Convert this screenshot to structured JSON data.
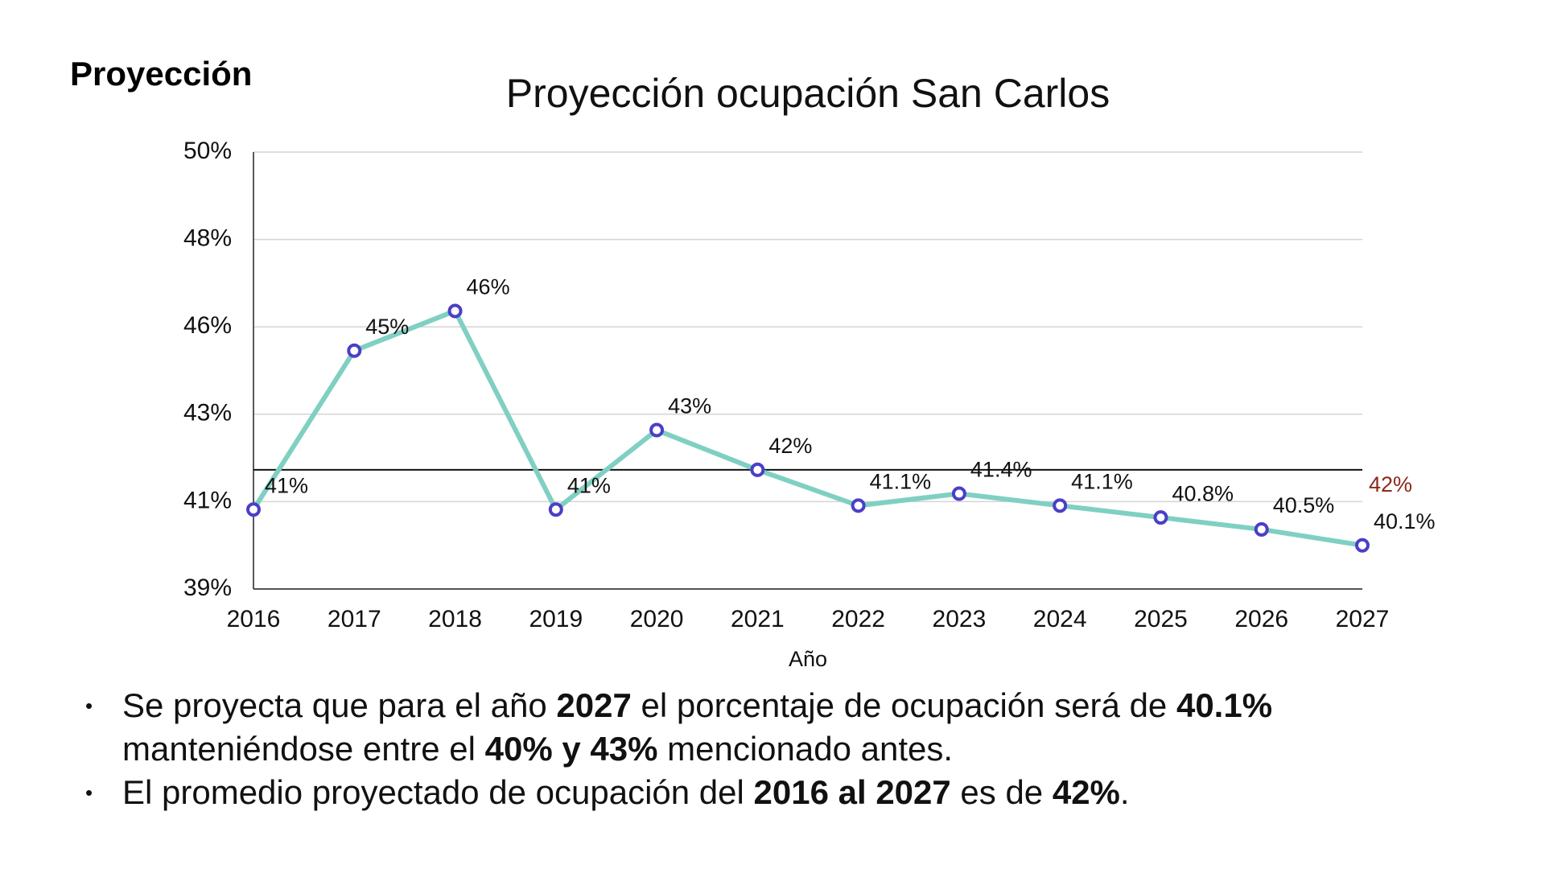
{
  "header": {
    "title": "Proyección"
  },
  "chart_data": {
    "type": "line",
    "title": "Proyección ocupación San Carlos",
    "x_label": "Año",
    "categories": [
      "2016",
      "2017",
      "2018",
      "2019",
      "2020",
      "2021",
      "2022",
      "2023",
      "2024",
      "2025",
      "2026",
      "2027"
    ],
    "values": [
      41,
      45,
      46,
      41,
      43,
      42,
      41.1,
      41.4,
      41.1,
      40.8,
      40.5,
      40.1
    ],
    "value_labels": [
      "41%",
      "45%",
      "46%",
      "41%",
      "43%",
      "42%",
      "41.1%",
      "41.4%",
      "41.1%",
      "40.8%",
      "40.5%",
      "40.1%"
    ],
    "color": "#7fd0c2",
    "marker_color": "#4b3fc6",
    "ylim": [
      39,
      50
    ],
    "yticks": [
      {
        "value": 39,
        "label": "39%"
      },
      {
        "value": 41.2,
        "label": "41%"
      },
      {
        "value": 43.4,
        "label": "43%"
      },
      {
        "value": 45.6,
        "label": "46%"
      },
      {
        "value": 47.8,
        "label": "48%"
      },
      {
        "value": 50,
        "label": "50%"
      }
    ],
    "grid": true,
    "reference_line": {
      "value": 42,
      "label": "42%",
      "color": "#8b2a1a"
    }
  },
  "bullets": [
    [
      {
        "text": "Se proyecta que para el año "
      },
      {
        "text": "2027",
        "bold": true
      },
      {
        "text": " el porcentaje de ocupación será de "
      },
      {
        "text": "40.1%",
        "bold": true
      },
      {
        "text": " manteniéndose entre el "
      },
      {
        "text": "40% y 43%",
        "bold": true
      },
      {
        "text": " mencionado antes."
      }
    ],
    [
      {
        "text": "El promedio proyectado de ocupación del "
      },
      {
        "text": "2016 al 2027",
        "bold": true
      },
      {
        "text": " es de "
      },
      {
        "text": "42%",
        "bold": true
      },
      {
        "text": "."
      }
    ]
  ]
}
